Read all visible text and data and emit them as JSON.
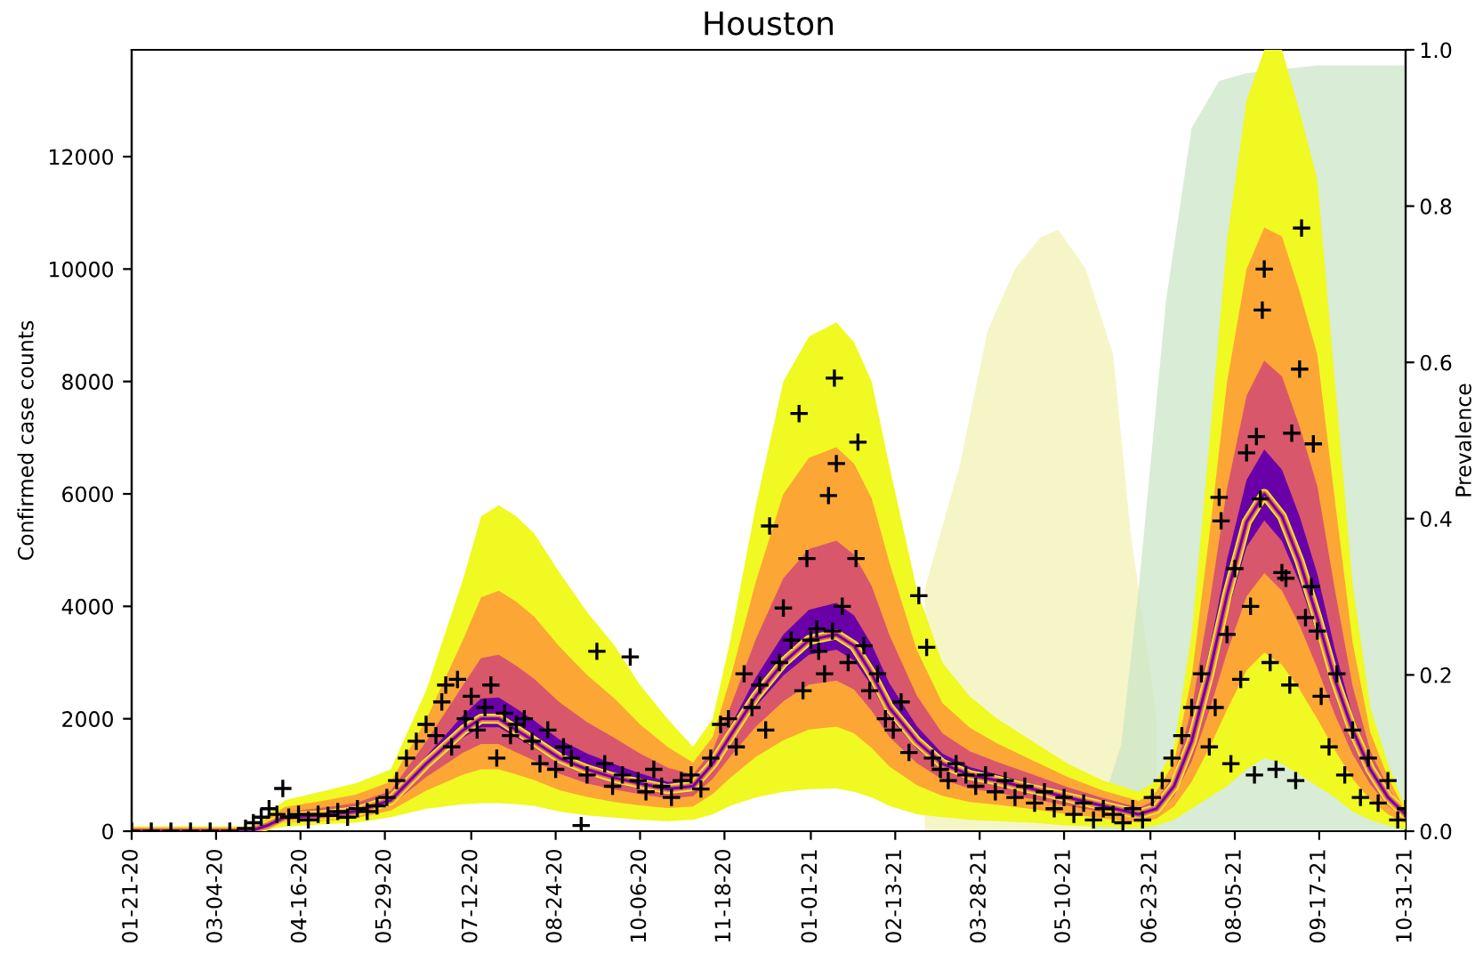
{
  "chart_data": {
    "type": "line",
    "title": "Houston",
    "ylabel": "Confirmed case counts",
    "y2label": "Prevalence",
    "x": [
      "2020-01-21",
      "2020-03-21",
      "2020-03-30",
      "2020-04-08",
      "2020-04-26",
      "2020-05-14",
      "2020-06-01",
      "2020-06-19",
      "2020-07-08",
      "2020-07-17",
      "2020-07-26",
      "2020-08-04",
      "2020-08-13",
      "2020-08-26",
      "2020-09-09",
      "2020-09-23",
      "2020-10-06",
      "2020-10-20",
      "2020-11-02",
      "2020-11-12",
      "2020-11-21",
      "2020-12-04",
      "2020-12-18",
      "2020-12-31",
      "2021-01-14",
      "2021-01-23",
      "2021-02-01",
      "2021-02-10",
      "2021-02-24",
      "2021-03-09",
      "2021-03-23",
      "2021-04-06",
      "2021-04-24",
      "2021-05-12",
      "2021-05-30",
      "2021-06-17",
      "2021-06-26",
      "2021-07-05",
      "2021-07-14",
      "2021-07-23",
      "2021-08-01",
      "2021-08-11",
      "2021-08-20",
      "2021-08-29",
      "2021-09-07",
      "2021-09-16",
      "2021-09-25",
      "2021-10-04",
      "2021-10-13",
      "2021-10-22",
      "2021-10-31"
    ],
    "xlim": [
      "2020-01-21",
      "2021-10-31"
    ],
    "xticks": [
      {
        "value": "2020-01-21",
        "label": "01-21-20"
      },
      {
        "value": "2020-03-04",
        "label": "03-04-20"
      },
      {
        "value": "2020-04-16",
        "label": "04-16-20"
      },
      {
        "value": "2020-05-29",
        "label": "05-29-20"
      },
      {
        "value": "2020-07-12",
        "label": "07-12-20"
      },
      {
        "value": "2020-08-24",
        "label": "08-24-20"
      },
      {
        "value": "2020-10-06",
        "label": "10-06-20"
      },
      {
        "value": "2020-11-18",
        "label": "11-18-20"
      },
      {
        "value": "2021-01-01",
        "label": "01-01-21"
      },
      {
        "value": "2021-02-13",
        "label": "02-13-21"
      },
      {
        "value": "2021-03-28",
        "label": "03-28-21"
      },
      {
        "value": "2021-05-10",
        "label": "05-10-21"
      },
      {
        "value": "2021-06-23",
        "label": "06-23-21"
      },
      {
        "value": "2021-08-05",
        "label": "08-05-21"
      },
      {
        "value": "2021-09-17",
        "label": "09-17-21"
      },
      {
        "value": "2021-10-31",
        "label": "10-31-21"
      }
    ],
    "ylim": [
      0,
      13900
    ],
    "yticks": [
      0,
      2000,
      4000,
      6000,
      8000,
      10000,
      12000
    ],
    "y2lim": [
      0,
      1
    ],
    "y2ticks": [
      {
        "value": 0,
        "label": "0.0"
      },
      {
        "value": 0.2,
        "label": "0.2"
      },
      {
        "value": 0.4,
        "label": "0.4"
      },
      {
        "value": 0.6,
        "label": "0.6"
      },
      {
        "value": 0.8,
        "label": "0.8"
      },
      {
        "value": 1,
        "label": "1.0"
      }
    ],
    "series": [
      {
        "type": "area",
        "axis": "y2",
        "color": "#f6f5c8",
        "x": [
          "2021-02-28",
          "2021-03-18",
          "2021-04-01",
          "2021-04-15",
          "2021-04-28",
          "2021-05-07",
          "2021-05-21",
          "2021-06-04",
          "2021-06-13",
          "2021-06-26"
        ],
        "values": [
          0.31,
          0.47,
          0.64,
          0.72,
          0.76,
          0.77,
          0.72,
          0.61,
          0.38,
          0.15
        ]
      },
      {
        "type": "area",
        "axis": "y2",
        "color": "#d9ecd6",
        "x": [
          "2021-05-25",
          "2021-06-08",
          "2021-06-17",
          "2021-07-01",
          "2021-07-14",
          "2021-07-28",
          "2021-08-11",
          "2021-09-16",
          "2021-10-04",
          "2021-10-31"
        ],
        "values": [
          0,
          0.11,
          0.31,
          0.68,
          0.9,
          0.96,
          0.97,
          0.98,
          0.98,
          0.98
        ]
      },
      {
        "color": "#f0f921",
        "values": [
          0,
          0,
          100,
          250,
          280,
          350,
          550,
          1200,
          1800,
          2000,
          2000,
          1800,
          1600,
          1300,
          1100,
          950,
          850,
          750,
          800,
          1200,
          1700,
          2400,
          3000,
          3400,
          3500,
          3300,
          2800,
          2200,
          1600,
          1200,
          1000,
          900,
          750,
          600,
          450,
          300,
          400,
          800,
          1600,
          2800,
          4200,
          5500,
          6000,
          5600,
          4800,
          3800,
          2700,
          1800,
          1100,
          600,
          300
        ],
        "upper": [
          0,
          0,
          300,
          550,
          700,
          850,
          1100,
          2500,
          4500,
          5600,
          5800,
          5600,
          5300,
          4600,
          3900,
          3300,
          2600,
          2000,
          1500,
          2000,
          3400,
          5800,
          8000,
          8800,
          9050,
          8700,
          8000,
          6500,
          4300,
          3000,
          2400,
          2000,
          1600,
          1200,
          900,
          700,
          900,
          1500,
          3500,
          6900,
          10500,
          13000,
          13900,
          13900,
          12800,
          11600,
          8000,
          4400,
          2200,
          1200,
          400
        ],
        "lower": [
          0,
          0,
          30,
          80,
          120,
          150,
          250,
          400,
          480,
          500,
          500,
          480,
          450,
          350,
          280,
          240,
          200,
          180,
          200,
          300,
          450,
          600,
          700,
          750,
          760,
          700,
          600,
          450,
          300,
          250,
          200,
          180,
          150,
          100,
          80,
          50,
          100,
          200,
          400,
          600,
          800,
          1100,
          1300,
          1200,
          1000,
          800,
          600,
          350,
          200,
          100,
          30
        ]
      },
      {
        "color": "#fca636",
        "values": [
          0,
          0,
          100,
          250,
          280,
          350,
          550,
          1200,
          1800,
          2000,
          2000,
          1800,
          1600,
          1300,
          1100,
          950,
          850,
          750,
          800,
          1200,
          1700,
          2400,
          3000,
          3400,
          3500,
          3300,
          2800,
          2200,
          1600,
          1200,
          1000,
          900,
          750,
          600,
          450,
          300,
          400,
          800,
          1600,
          2800,
          4200,
          5500,
          6000,
          5600,
          4800,
          3800,
          2700,
          1800,
          1100,
          600,
          300
        ],
        "upper": [
          0,
          0,
          220,
          430,
          530,
          650,
          880,
          1980,
          3420,
          4160,
          4280,
          4080,
          3820,
          3280,
          2780,
          2360,
          1900,
          1500,
          1220,
          1680,
          2720,
          4440,
          6000,
          6640,
          6830,
          6540,
          5920,
          4780,
          3220,
          2280,
          1840,
          1560,
          1260,
          960,
          720,
          540,
          700,
          1220,
          2740,
          5260,
          7980,
          10000,
          10740,
          10580,
          9600,
          8480,
          5880,
          3360,
          1760,
          960,
          360
        ],
        "lower": [
          0,
          0,
          60,
          150,
          180,
          230,
          370,
          720,
          1010,
          1100,
          1100,
          1010,
          910,
          730,
          610,
          520,
          460,
          410,
          440,
          660,
          950,
          1320,
          1620,
          1810,
          1860,
          1740,
          1480,
          1150,
          820,
          630,
          520,
          470,
          390,
          300,
          230,
          150,
          220,
          440,
          880,
          1480,
          2160,
          2860,
          3180,
          2960,
          2520,
          2000,
          1440,
          930,
          560,
          300,
          140
        ]
      },
      {
        "color": "#d8576b",
        "values": [
          0,
          0,
          100,
          250,
          280,
          350,
          550,
          1200,
          1800,
          2000,
          2000,
          1800,
          1600,
          1300,
          1100,
          950,
          850,
          750,
          800,
          1200,
          1700,
          2400,
          3000,
          3400,
          3500,
          3300,
          2800,
          2200,
          1600,
          1200,
          1000,
          900,
          750,
          600,
          450,
          300,
          400,
          800,
          1600,
          2800,
          4200,
          5500,
          6000,
          5600,
          4800,
          3800,
          2700,
          1800,
          1100,
          600,
          300
        ],
        "upper": [
          0,
          0,
          160,
          340,
          410,
          500,
          720,
          1590,
          2610,
          3080,
          3140,
          2940,
          2710,
          2290,
          1940,
          1660,
          1380,
          1130,
          1010,
          1440,
          2210,
          3420,
          4500,
          5020,
          5170,
          4920,
          4360,
          3490,
          2410,
          1740,
          1420,
          1230,
          1010,
          780,
          590,
          420,
          550,
          1010,
          2170,
          4030,
          6090,
          7750,
          8370,
          8090,
          7200,
          6140,
          4290,
          2580,
          1430,
          780,
          330
        ],
        "lower": [
          0,
          0,
          80,
          200,
          230,
          290,
          460,
          960,
          1400,
          1550,
          1550,
          1400,
          1260,
          1020,
          850,
          740,
          660,
          580,
          620,
          930,
          1330,
          1860,
          2310,
          2610,
          2680,
          2520,
          2140,
          1680,
          1210,
          920,
          760,
          680,
          570,
          450,
          340,
          230,
          310,
          620,
          1240,
          2140,
          3180,
          4180,
          4590,
          4280,
          3660,
          2900,
          2070,
          1370,
          830,
          450,
          220
        ]
      },
      {
        "color": "#6a00a8",
        "values": [
          0,
          0,
          100,
          250,
          280,
          350,
          550,
          1200,
          1800,
          2000,
          2000,
          1800,
          1600,
          1300,
          1100,
          950,
          850,
          750,
          800,
          1200,
          1700,
          2400,
          3000,
          3400,
          3500,
          3300,
          2800,
          2200,
          1600,
          1200,
          1000,
          900,
          750,
          600,
          450,
          300,
          400,
          800,
          1600,
          2800,
          4200,
          5500,
          6000,
          5600,
          4800,
          3800,
          2700,
          1800,
          1100,
          600,
          300
        ],
        "upper": [
          0,
          0,
          120,
          280,
          320,
          400,
          600,
          1330,
          2070,
          2360,
          2380,
          2180,
          1970,
          1630,
          1380,
          1190,
          1030,
          880,
          870,
          1280,
          1870,
          2740,
          3500,
          3940,
          4060,
          3840,
          3320,
          2630,
          1870,
          1380,
          1140,
          1010,
          840,
          660,
          500,
          340,
          450,
          870,
          1790,
          3210,
          4830,
          6250,
          6790,
          6430,
          5600,
          4580,
          3230,
          2060,
          1210,
          660,
          310
        ],
        "lower": [
          0,
          0,
          90,
          230,
          260,
          330,
          520,
          1120,
          1670,
          1850,
          1850,
          1670,
          1490,
          1210,
          1020,
          880,
          790,
          690,
          740,
          1110,
          1580,
          2220,
          2770,
          3140,
          3230,
          3040,
          2580,
          2030,
          1470,
          1110,
          920,
          830,
          690,
          550,
          410,
          280,
          370,
          740,
          1480,
          2580,
          3860,
          5060,
          5530,
          5160,
          4420,
          3500,
          2490,
          1660,
          1010,
          550,
          270
        ]
      },
      {
        "type": "scatter",
        "color": "#000000",
        "marker": "cross",
        "x": [
          "2020-01-21",
          "2020-01-31",
          "2020-02-10",
          "2020-02-20",
          "2020-03-01",
          "2020-03-11",
          "2020-03-19",
          "2020-03-23",
          "2020-03-27",
          "2020-03-31",
          "2020-04-04",
          "2020-04-07",
          "2020-04-10",
          "2020-04-15",
          "2020-04-20",
          "2020-04-25",
          "2020-04-30",
          "2020-05-05",
          "2020-05-10",
          "2020-05-15",
          "2020-05-20",
          "2020-05-25",
          "2020-05-30",
          "2020-06-04",
          "2020-06-09",
          "2020-06-14",
          "2020-06-19",
          "2020-06-24",
          "2020-06-27",
          "2020-06-29",
          "2020-07-02",
          "2020-07-05",
          "2020-07-09",
          "2020-07-12",
          "2020-07-15",
          "2020-07-19",
          "2020-07-22",
          "2020-07-25",
          "2020-07-29",
          "2020-08-01",
          "2020-08-04",
          "2020-08-08",
          "2020-08-12",
          "2020-08-16",
          "2020-08-20",
          "2020-08-24",
          "2020-08-28",
          "2020-09-01",
          "2020-09-06",
          "2020-09-09",
          "2020-09-14",
          "2020-09-18",
          "2020-09-22",
          "2020-09-27",
          "2020-10-01",
          "2020-10-05",
          "2020-10-09",
          "2020-10-13",
          "2020-10-17",
          "2020-10-22",
          "2020-10-27",
          "2020-11-01",
          "2020-11-06",
          "2020-11-11",
          "2020-11-16",
          "2020-11-20",
          "2020-11-24",
          "2020-11-28",
          "2020-12-02",
          "2020-12-06",
          "2020-12-09",
          "2020-12-11",
          "2020-12-16",
          "2020-12-18",
          "2020-12-22",
          "2020-12-26",
          "2020-12-28",
          "2020-12-30",
          "2021-01-01",
          "2021-01-04",
          "2021-01-05",
          "2021-01-08",
          "2021-01-10",
          "2021-01-12",
          "2021-01-13",
          "2021-01-14",
          "2021-01-17",
          "2021-01-20",
          "2021-01-24",
          "2021-01-25",
          "2021-01-28",
          "2021-01-31",
          "2021-02-04",
          "2021-02-08",
          "2021-02-12",
          "2021-02-16",
          "2021-02-20",
          "2021-02-25",
          "2021-03-01",
          "2021-03-04",
          "2021-03-08",
          "2021-03-12",
          "2021-03-16",
          "2021-03-21",
          "2021-03-26",
          "2021-03-31",
          "2021-04-05",
          "2021-04-10",
          "2021-04-15",
          "2021-04-20",
          "2021-04-25",
          "2021-04-30",
          "2021-05-05",
          "2021-05-10",
          "2021-05-15",
          "2021-05-20",
          "2021-05-25",
          "2021-05-30",
          "2021-06-04",
          "2021-06-09",
          "2021-06-14",
          "2021-06-19",
          "2021-06-24",
          "2021-06-29",
          "2021-07-04",
          "2021-07-09",
          "2021-07-14",
          "2021-07-19",
          "2021-07-23",
          "2021-07-26",
          "2021-07-28",
          "2021-07-29",
          "2021-08-01",
          "2021-08-03",
          "2021-08-05",
          "2021-08-08",
          "2021-08-11",
          "2021-08-13",
          "2021-08-15",
          "2021-08-16",
          "2021-08-18",
          "2021-08-19",
          "2021-08-20",
          "2021-08-23",
          "2021-08-26",
          "2021-08-29",
          "2021-08-31",
          "2021-09-02",
          "2021-09-03",
          "2021-09-05",
          "2021-09-07",
          "2021-09-08",
          "2021-09-10",
          "2021-09-13",
          "2021-09-14",
          "2021-09-16",
          "2021-09-18",
          "2021-09-22",
          "2021-09-26",
          "2021-09-30",
          "2021-10-04",
          "2021-10-08",
          "2021-10-12",
          "2021-10-17",
          "2021-10-22",
          "2021-10-27",
          "2021-10-31"
        ],
        "values": [
          0,
          0,
          0,
          0,
          0,
          0,
          50,
          150,
          250,
          400,
          300,
          760,
          250,
          300,
          200,
          300,
          280,
          350,
          250,
          400,
          350,
          450,
          600,
          900,
          1300,
          1600,
          1900,
          1700,
          2300,
          2600,
          1500,
          2700,
          2000,
          2400,
          1800,
          2200,
          2600,
          1300,
          2100,
          1700,
          1900,
          2000,
          1600,
          1200,
          1800,
          1100,
          1500,
          1300,
          100,
          1000,
          3200,
          1200,
          800,
          1000,
          3100,
          900,
          700,
          1100,
          800,
          600,
          900,
          1000,
          750,
          1300,
          1900,
          2000,
          1500,
          2800,
          2200,
          2600,
          1800,
          5430,
          3000,
          3970,
          3400,
          7430,
          2500,
          4850,
          3400,
          3600,
          3200,
          2800,
          5970,
          3560,
          8060,
          6540,
          4000,
          3000,
          4850,
          6920,
          3300,
          2500,
          2800,
          2000,
          1800,
          2300,
          1400,
          4190,
          3270,
          1300,
          1100,
          900,
          1200,
          1000,
          800,
          1000,
          700,
          900,
          600,
          800,
          500,
          700,
          400,
          600,
          300,
          500,
          200,
          400,
          300,
          150,
          400,
          200,
          600,
          900,
          1300,
          1700,
          2200,
          2800,
          1500,
          2200,
          5940,
          5520,
          3500,
          1200,
          4670,
          2700,
          6730,
          4000,
          1000,
          7020,
          5910,
          9270,
          10000,
          3000,
          1100,
          4600,
          4500,
          2600,
          7080,
          900,
          8220,
          10730,
          3800,
          4350,
          6890,
          3560,
          2400,
          1500,
          2800,
          1000,
          1800,
          600,
          1300,
          500,
          900,
          200,
          400
        ]
      }
    ]
  }
}
